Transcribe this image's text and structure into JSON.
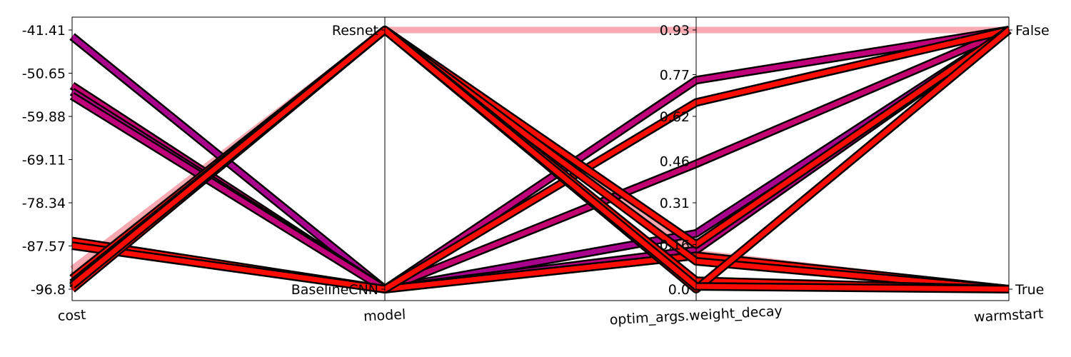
{
  "chart_data": {
    "type": "parallel-coordinates",
    "axes": [
      {
        "name": "cost",
        "kind": "numeric",
        "min": -96.8,
        "max": -41.41,
        "ticks": [
          "-41.41",
          "-50.65",
          "-59.88",
          "-69.11",
          "-78.34",
          "-87.57",
          "-96.8"
        ]
      },
      {
        "name": "model",
        "kind": "categorical",
        "categories": [
          "Resnet",
          "BaselineCNN"
        ]
      },
      {
        "name": "optim_args.weight_decay",
        "kind": "numeric",
        "min": 0.0,
        "max": 0.93,
        "ticks": [
          "0.93",
          "0.77",
          "0.62",
          "0.46",
          "0.31",
          "0.16",
          "0.0"
        ]
      },
      {
        "name": "warmstart",
        "kind": "categorical",
        "categories": [
          "False",
          "True"
        ]
      }
    ],
    "lines": [
      {
        "cost": -92.5,
        "model": "Resnet",
        "weight_decay": 0.93,
        "warmstart": "False",
        "color": "#f8a0a8",
        "faint": true
      },
      {
        "cost": -93.8,
        "model": "Resnet",
        "weight_decay": 0.13,
        "warmstart": "True",
        "color": "#f8a0a8",
        "faint": true
      },
      {
        "cost": -42.8,
        "model": "BaselineCNN",
        "weight_decay": 0.2,
        "warmstart": "False",
        "color": "#a8008c"
      },
      {
        "cost": -53.3,
        "model": "BaselineCNN",
        "weight_decay": 0.45,
        "warmstart": "False",
        "color": "#c40070"
      },
      {
        "cost": -54.6,
        "model": "BaselineCNN",
        "weight_decay": 0.14,
        "warmstart": "False",
        "color": "#b80080"
      },
      {
        "cost": -55.5,
        "model": "BaselineCNN",
        "weight_decay": 0.75,
        "warmstart": "False",
        "color": "#c0007a"
      },
      {
        "cost": -86.5,
        "model": "BaselineCNN",
        "weight_decay": 0.12,
        "warmstart": "True",
        "color": "#ff0a00"
      },
      {
        "cost": -87.5,
        "model": "BaselineCNN",
        "weight_decay": 0.67,
        "warmstart": "False",
        "color": "#ff0a00"
      },
      {
        "cost": -94.5,
        "model": "Resnet",
        "weight_decay": 0.16,
        "warmstart": "False",
        "color": "#ff0a00"
      },
      {
        "cost": -95.5,
        "model": "Resnet",
        "weight_decay": 0.1,
        "warmstart": "True",
        "color": "#ff0a00"
      },
      {
        "cost": -96.3,
        "model": "Resnet",
        "weight_decay": 0.03,
        "warmstart": "True",
        "color": "#ff0a00"
      },
      {
        "cost": -96.8,
        "model": "Resnet",
        "weight_decay": 0.0,
        "warmstart": "False",
        "color": "#ff0a00"
      },
      {
        "cost": -96.0,
        "model": "Resnet",
        "weight_decay": 0.01,
        "warmstart": "True",
        "color": "#ff0a00"
      }
    ]
  }
}
